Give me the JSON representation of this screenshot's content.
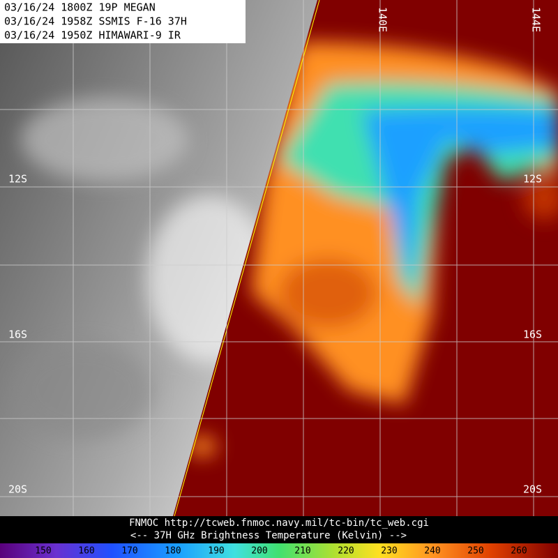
{
  "header": {
    "lines": [
      "03/16/24 1800Z  19P MEGAN",
      "03/16/24 1958Z  SSMIS F-16 37H",
      "03/16/24 1950Z  HIMAWARI-9 IR"
    ]
  },
  "grid": {
    "lat_labels": [
      "12S",
      "16S",
      "20S"
    ],
    "lon_labels": [
      "140E",
      "144E"
    ]
  },
  "footer": {
    "source": "FNMOC  http://tcweb.fnmoc.navy.mil/tc-bin/tc_web.cgi",
    "caption": "<--   37H GHz Brightness Temperature (Kelvin)   -->"
  },
  "colorbar": {
    "ticks": [
      150,
      160,
      170,
      180,
      190,
      200,
      210,
      220,
      230,
      240,
      250,
      260
    ]
  }
}
